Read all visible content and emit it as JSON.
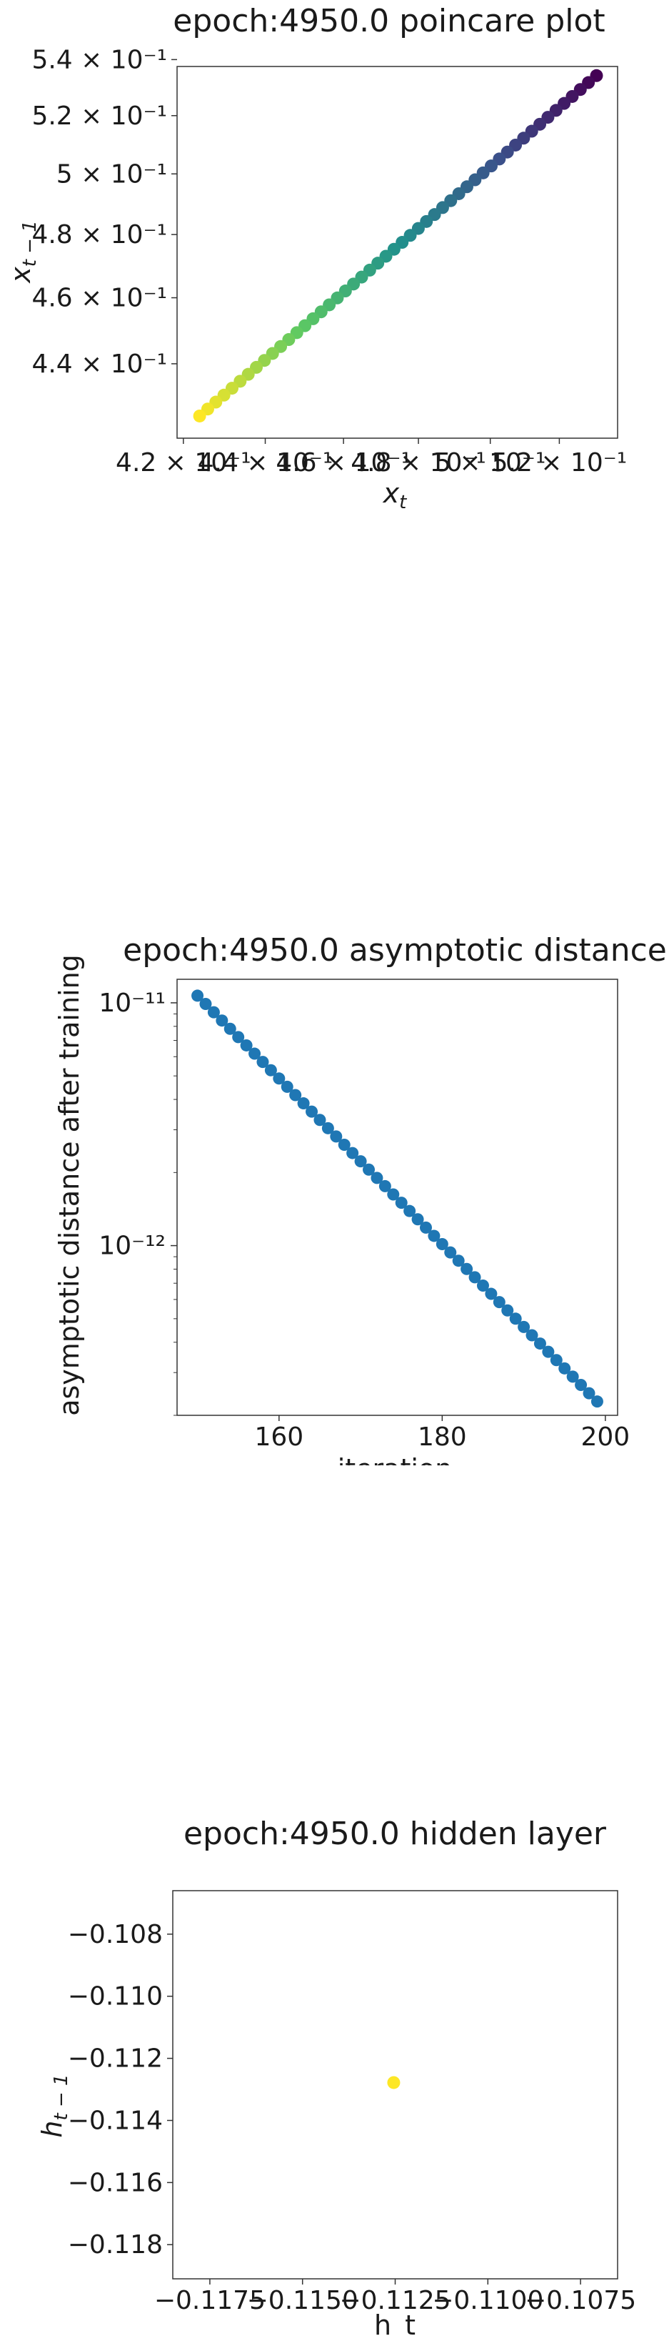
{
  "chart_data": [
    {
      "type": "scatter",
      "title": "epoch:4950.0 poincare plot",
      "xlabel": "x_t",
      "ylabel": "x_{t-1}",
      "x_scale": "log",
      "y_scale": "log",
      "colormap": "viridis",
      "xlim": [
        0.4185,
        0.5375
      ],
      "ylim": [
        0.4185,
        0.5375
      ],
      "x_ticks": [
        0.42,
        0.44,
        0.46,
        0.48,
        0.5,
        0.52
      ],
      "x_tick_labels": [
        "4.2 × 10⁻¹",
        "4.4 × 10⁻¹",
        "4.6 × 10⁻¹",
        "4.8 × 10⁻¹",
        "5 × 10⁻¹",
        "5.2 × 10⁻¹"
      ],
      "y_ticks": [
        0.44,
        0.46,
        0.48,
        0.5,
        0.52,
        0.54
      ],
      "y_tick_labels": [
        "4.4 × 10⁻¹",
        "4.6 × 10⁻¹",
        "4.8 × 10⁻¹",
        "5 × 10⁻¹",
        "5.2 × 10⁻¹",
        "5.4 × 10⁻¹"
      ],
      "points": {
        "x_start": 0.5311,
        "x_end": 0.4239,
        "y_start": 0.5342,
        "y_end": 0.4248,
        "count": 50
      },
      "grid": false
    },
    {
      "type": "scatter",
      "title": "epoch:4950.0 asymptotic distance",
      "xlabel": "iteration",
      "ylabel": "asymptotic distance after training",
      "y_scale": "log",
      "color": "#1f77b4",
      "xlim": [
        147.5,
        201.5
      ],
      "ylim": [
        2e-13,
        1.25e-11
      ],
      "x_ticks": [
        160,
        180,
        200
      ],
      "x_tick_labels": [
        "160",
        "180",
        "200"
      ],
      "y_ticks": [
        1e-12,
        1e-11
      ],
      "y_tick_labels": [
        "10⁻¹²",
        "10⁻¹¹"
      ],
      "points": {
        "x_start": 150,
        "x_end": 199,
        "y_start": 1.07e-11,
        "y_end": 2.28e-13
      },
      "grid": false
    },
    {
      "type": "scatter",
      "title": "epoch:4950.0 hidden layer",
      "xlabel": "h_t",
      "ylabel": "h_{t-1}",
      "color": "#fde725",
      "xlim": [
        -0.1185,
        -0.1065
      ],
      "ylim": [
        -0.1191,
        -0.1066
      ],
      "x_ticks": [
        -0.1175,
        -0.115,
        -0.1125,
        -0.11,
        -0.1075
      ],
      "x_tick_labels": [
        "−0.1175",
        "−0.1150",
        "−0.1125",
        "−0.1100",
        "−0.1075"
      ],
      "y_ticks": [
        -0.108,
        -0.11,
        -0.112,
        -0.114,
        -0.116,
        -0.118
      ],
      "y_tick_labels": [
        "−0.108",
        "−0.110",
        "−0.112",
        "−0.114",
        "−0.116",
        "−0.118"
      ],
      "x": [
        -0.11254
      ],
      "y": [
        -0.11278
      ],
      "grid": false
    }
  ]
}
